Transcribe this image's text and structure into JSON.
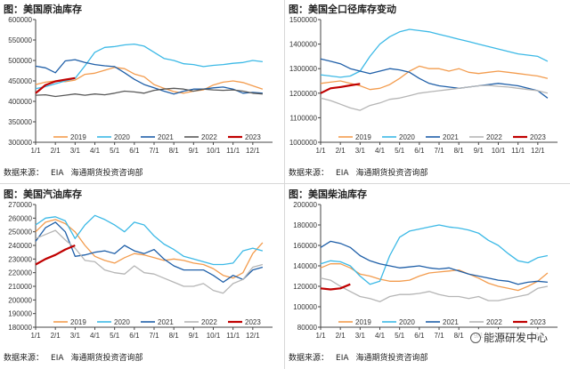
{
  "source_label": "数据来源：",
  "source_org": "EIA",
  "source_dept": "海通期货投资咨询部",
  "watermark": "能源研发中心",
  "chart_data": [
    {
      "type": "line",
      "title": "图：美国原油库存",
      "ylim": [
        300000,
        600000
      ],
      "yticks": [
        300000,
        350000,
        400000,
        450000,
        500000,
        550000,
        600000
      ],
      "x_ticks": [
        "1/1",
        "2/1",
        "3/1",
        "4/1",
        "5/1",
        "6/1",
        "7/1",
        "8/1",
        "9/1",
        "10/1",
        "11/1",
        "12/1"
      ],
      "grid": false,
      "legend": "bottom",
      "series": [
        {
          "name": "2019",
          "color": "#f39c4e",
          "values": [
            441000,
            447000,
            450000,
            448000,
            452000,
            466000,
            469000,
            476000,
            483000,
            480000,
            467000,
            460000,
            441000,
            432000,
            424000,
            420000,
            425000,
            428000,
            440000,
            447000,
            450000,
            446000,
            438000,
            430000
          ]
        },
        {
          "name": "2020",
          "color": "#3cb9e6",
          "values": [
            431000,
            436000,
            443000,
            450000,
            456000,
            487000,
            520000,
            532000,
            534000,
            538000,
            540000,
            535000,
            520000,
            505000,
            500000,
            492000,
            490000,
            485000,
            488000,
            490000,
            493000,
            495000,
            500000,
            497000
          ]
        },
        {
          "name": "2021",
          "color": "#1f5fa8",
          "values": [
            486000,
            482000,
            470000,
            499000,
            502000,
            495000,
            490000,
            487000,
            485000,
            470000,
            454000,
            441000,
            433000,
            425000,
            418000,
            425000,
            430000,
            430000,
            433000,
            435000,
            430000,
            420000,
            422000,
            420000
          ]
        },
        {
          "name": "2022",
          "color": "#595959",
          "values": [
            415000,
            416000,
            412000,
            415000,
            418000,
            415000,
            418000,
            416000,
            420000,
            425000,
            423000,
            420000,
            427000,
            430000,
            432000,
            430000,
            425000,
            430000,
            428000,
            427000,
            428000,
            425000,
            420000,
            418000
          ]
        },
        {
          "name": "2023",
          "color": "#c00000",
          "values": [
            420000,
            440000,
            449000,
            453000,
            457000
          ]
        }
      ]
    },
    {
      "type": "line",
      "title": "图：美国全口径库存变动",
      "ylim": [
        1000000,
        1500000
      ],
      "yticks": [
        1000000,
        1100000,
        1200000,
        1300000,
        1400000,
        1500000
      ],
      "x_ticks": [
        "1/1",
        "2/1",
        "3/1",
        "4/1",
        "5/1",
        "6/1",
        "7/1",
        "8/1",
        "9/1",
        "10/1",
        "11/1",
        "12/1"
      ],
      "grid": false,
      "legend": "bottom",
      "series": [
        {
          "name": "2019",
          "color": "#f39c4e",
          "values": [
            1240000,
            1245000,
            1250000,
            1240000,
            1230000,
            1215000,
            1220000,
            1235000,
            1260000,
            1290000,
            1310000,
            1300000,
            1300000,
            1290000,
            1300000,
            1285000,
            1280000,
            1285000,
            1290000,
            1285000,
            1280000,
            1275000,
            1270000,
            1260000
          ]
        },
        {
          "name": "2020",
          "color": "#3cb9e6",
          "values": [
            1275000,
            1270000,
            1265000,
            1270000,
            1290000,
            1350000,
            1400000,
            1430000,
            1450000,
            1460000,
            1455000,
            1450000,
            1440000,
            1430000,
            1420000,
            1410000,
            1400000,
            1390000,
            1380000,
            1370000,
            1360000,
            1355000,
            1350000,
            1330000
          ]
        },
        {
          "name": "2021",
          "color": "#1f5fa8",
          "values": [
            1340000,
            1330000,
            1320000,
            1300000,
            1290000,
            1280000,
            1290000,
            1300000,
            1295000,
            1285000,
            1260000,
            1240000,
            1230000,
            1225000,
            1220000,
            1225000,
            1230000,
            1235000,
            1240000,
            1235000,
            1230000,
            1220000,
            1210000,
            1180000
          ]
        },
        {
          "name": "2022",
          "color": "#b5b5b5",
          "values": [
            1180000,
            1170000,
            1155000,
            1140000,
            1130000,
            1150000,
            1160000,
            1175000,
            1180000,
            1190000,
            1200000,
            1205000,
            1210000,
            1215000,
            1220000,
            1225000,
            1230000,
            1232000,
            1228000,
            1225000,
            1220000,
            1215000,
            1210000,
            1200000
          ]
        },
        {
          "name": "2023",
          "color": "#c00000",
          "values": [
            1200000,
            1220000,
            1225000,
            1232000,
            1238000
          ]
        }
      ]
    },
    {
      "type": "line",
      "title": "图：美国汽油库存",
      "ylim": [
        180000,
        270000
      ],
      "yticks": [
        180000,
        190000,
        200000,
        210000,
        220000,
        230000,
        240000,
        250000,
        260000,
        270000
      ],
      "x_ticks": [
        "1/1",
        "2/1",
        "3/1",
        "4/1",
        "5/1",
        "6/1",
        "7/1",
        "8/1",
        "9/1",
        "10/1",
        "11/1",
        "12/1"
      ],
      "grid": false,
      "legend": "bottom",
      "series": [
        {
          "name": "2019",
          "color": "#f39c4e",
          "values": [
            250000,
            257000,
            259000,
            256000,
            250000,
            240000,
            232000,
            229000,
            227000,
            231000,
            234000,
            233000,
            231000,
            229000,
            230000,
            229000,
            227000,
            226000,
            223000,
            218000,
            216000,
            220000,
            234000,
            242000
          ]
        },
        {
          "name": "2020",
          "color": "#3cb9e6",
          "values": [
            255000,
            260000,
            261000,
            258000,
            245000,
            255000,
            262000,
            259000,
            255000,
            250000,
            257000,
            255000,
            247000,
            241000,
            237000,
            232000,
            230000,
            228000,
            226000,
            226000,
            227000,
            236000,
            238000,
            236000
          ]
        },
        {
          "name": "2021",
          "color": "#1f5fa8",
          "values": [
            243000,
            253000,
            257000,
            250000,
            232000,
            233000,
            235000,
            236000,
            234000,
            240000,
            236000,
            234000,
            237000,
            230000,
            225000,
            222000,
            222000,
            222000,
            218000,
            213000,
            218000,
            215000,
            222000,
            224000
          ]
        },
        {
          "name": "2022",
          "color": "#b5b5b5",
          "values": [
            245000,
            248000,
            251000,
            244000,
            238000,
            229000,
            228000,
            222000,
            220000,
            219000,
            225000,
            220000,
            219000,
            216000,
            213000,
            210000,
            210000,
            212000,
            207000,
            205000,
            212000,
            215000,
            224000,
            226000
          ]
        },
        {
          "name": "2023",
          "color": "#c00000",
          "values": [
            226000,
            230000,
            233000,
            237000,
            240000
          ]
        }
      ]
    },
    {
      "type": "line",
      "title": "图：美国柴油库存",
      "ylim": [
        80000,
        200000
      ],
      "yticks": [
        80000,
        100000,
        120000,
        140000,
        160000,
        180000,
        200000
      ],
      "x_ticks": [
        "1/1",
        "2/1",
        "3/1",
        "4/1",
        "5/1",
        "6/1",
        "7/1",
        "8/1",
        "9/1",
        "10/1",
        "11/1",
        "12/1"
      ],
      "grid": false,
      "legend": "bottom",
      "series": [
        {
          "name": "2019",
          "color": "#f39c4e",
          "values": [
            138000,
            142000,
            142000,
            138000,
            132000,
            130000,
            127000,
            125000,
            125000,
            126000,
            130000,
            133000,
            134000,
            135000,
            136000,
            132000,
            128000,
            123000,
            120000,
            118000,
            116000,
            120000,
            125000,
            133000
          ]
        },
        {
          "name": "2020",
          "color": "#3cb9e6",
          "values": [
            142000,
            145000,
            144000,
            140000,
            130000,
            122000,
            125000,
            150000,
            168000,
            174000,
            176000,
            178000,
            180000,
            178000,
            177000,
            175000,
            172000,
            165000,
            160000,
            152000,
            145000,
            143000,
            148000,
            150000
          ]
        },
        {
          "name": "2021",
          "color": "#1f5fa8",
          "values": [
            158000,
            164000,
            162000,
            158000,
            150000,
            145000,
            142000,
            140000,
            138000,
            139000,
            140000,
            138000,
            137000,
            138000,
            135000,
            132000,
            130000,
            128000,
            126000,
            125000,
            122000,
            124000,
            125000,
            124000
          ]
        },
        {
          "name": "2022",
          "color": "#b5b5b5",
          "values": [
            128000,
            126000,
            120000,
            115000,
            110000,
            108000,
            105000,
            110000,
            112000,
            112000,
            113000,
            115000,
            112000,
            110000,
            110000,
            108000,
            110000,
            106000,
            106000,
            108000,
            110000,
            112000,
            118000,
            120000
          ]
        },
        {
          "name": "2023",
          "color": "#c00000",
          "values": [
            118000,
            117000,
            118000,
            122000
          ]
        }
      ]
    }
  ]
}
